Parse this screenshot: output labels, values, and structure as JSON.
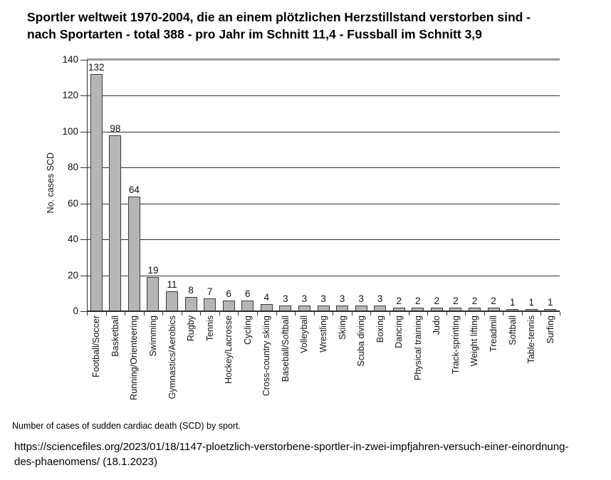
{
  "title": {
    "line1": "Sportler weltweit 1970-2004, die an einem plötzlichen Herzstillstand verstorben sind -",
    "line2": "nach Sportarten - total 388 - pro Jahr im Schnitt 11,4 - Fussball im Schnitt 3,9"
  },
  "chart_data": {
    "type": "bar",
    "title": "",
    "xlabel": "",
    "ylabel": "No. cases SCD",
    "ylim": [
      0,
      140
    ],
    "ytick_step": 20,
    "grid": true,
    "legend": "none",
    "bar_color": "#b5b5b5",
    "bar_border_color": "#3c3c3c",
    "categories": [
      "Football/Soccer",
      "Basketball",
      "Running/Orienteering",
      "Swimming",
      "Gymnastics/Aerobics",
      "Rugby",
      "Tennis",
      "Hockey/Lacrosse",
      "Cycling",
      "Cross-country skiing",
      "Baseball/Softball",
      "Volleyball",
      "Wrestling",
      "Skiing",
      "Scuba diving",
      "Boxing",
      "Dancing",
      "Physical training",
      "Judo",
      "Track-sprinting",
      "Weight lifting",
      "Treadmill",
      "Softball",
      "Table-tennis",
      "Surfing"
    ],
    "values": [
      132,
      98,
      64,
      19,
      11,
      8,
      7,
      6,
      6,
      4,
      3,
      3,
      3,
      3,
      3,
      3,
      2,
      2,
      2,
      2,
      2,
      2,
      1,
      1,
      1
    ]
  },
  "footnote": "Number of cases of sudden cardiac death (SCD) by sport.",
  "source": {
    "line1": "https://sciencefiles.org/2023/01/18/1147-ploetzlich-verstorbene-sportler-in-zwei-impfjahren-versuch-einer-einordnung-",
    "line2": "des-phaenomens/ (18.1.2023)"
  }
}
